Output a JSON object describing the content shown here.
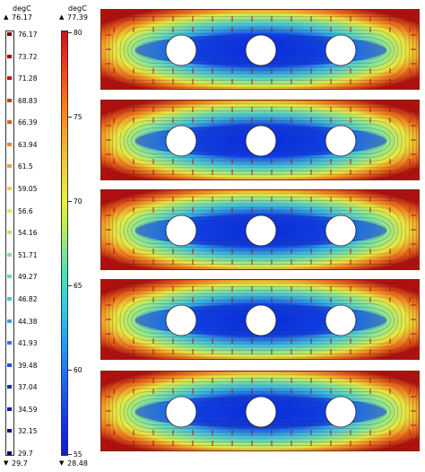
{
  "legend_left": {
    "unit": "degC",
    "max_label": "76.17",
    "min_label": "29.7",
    "max_marker": "▲",
    "min_marker": "▼",
    "ticks": [
      "76.17",
      "73.72",
      "71.28",
      "68.83",
      "66.39",
      "63.94",
      "61.5",
      "59.05",
      "56.6",
      "54.16",
      "51.71",
      "49.27",
      "46.82",
      "44.38",
      "41.93",
      "39.48",
      "37.04",
      "34.59",
      "32.15",
      "29.7"
    ],
    "tick_colors": [
      "#7a0000",
      "#a00000",
      "#c81010",
      "#e03018",
      "#e85a20",
      "#f08030",
      "#f0a040",
      "#f0d040",
      "#e0e860",
      "#b8e878",
      "#90e090",
      "#70d8a8",
      "#50c8c8",
      "#40a0e0",
      "#3078e0",
      "#2050d8",
      "#1030c8",
      "#0818b0",
      "#000c90",
      "#000070"
    ],
    "bottom_value": "29.7"
  },
  "legend_right": {
    "unit": "degC",
    "max_label": "77.39",
    "min_label": "28.48",
    "max_marker": "▲",
    "min_marker": "▼",
    "ticks": [
      "80",
      "75",
      "70",
      "65",
      "60",
      "55"
    ]
  },
  "panels": [
    {
      "name": "panel-1"
    },
    {
      "name": "panel-2"
    },
    {
      "name": "panel-3"
    },
    {
      "name": "panel-4"
    },
    {
      "name": "panel-5"
    }
  ],
  "colors": {
    "hot": "#b01010",
    "warm": "#f08020",
    "mid": "#e8e840",
    "cool": "#40c0e0",
    "cold": "#0a2ad8",
    "hole": "#ffffff"
  }
}
